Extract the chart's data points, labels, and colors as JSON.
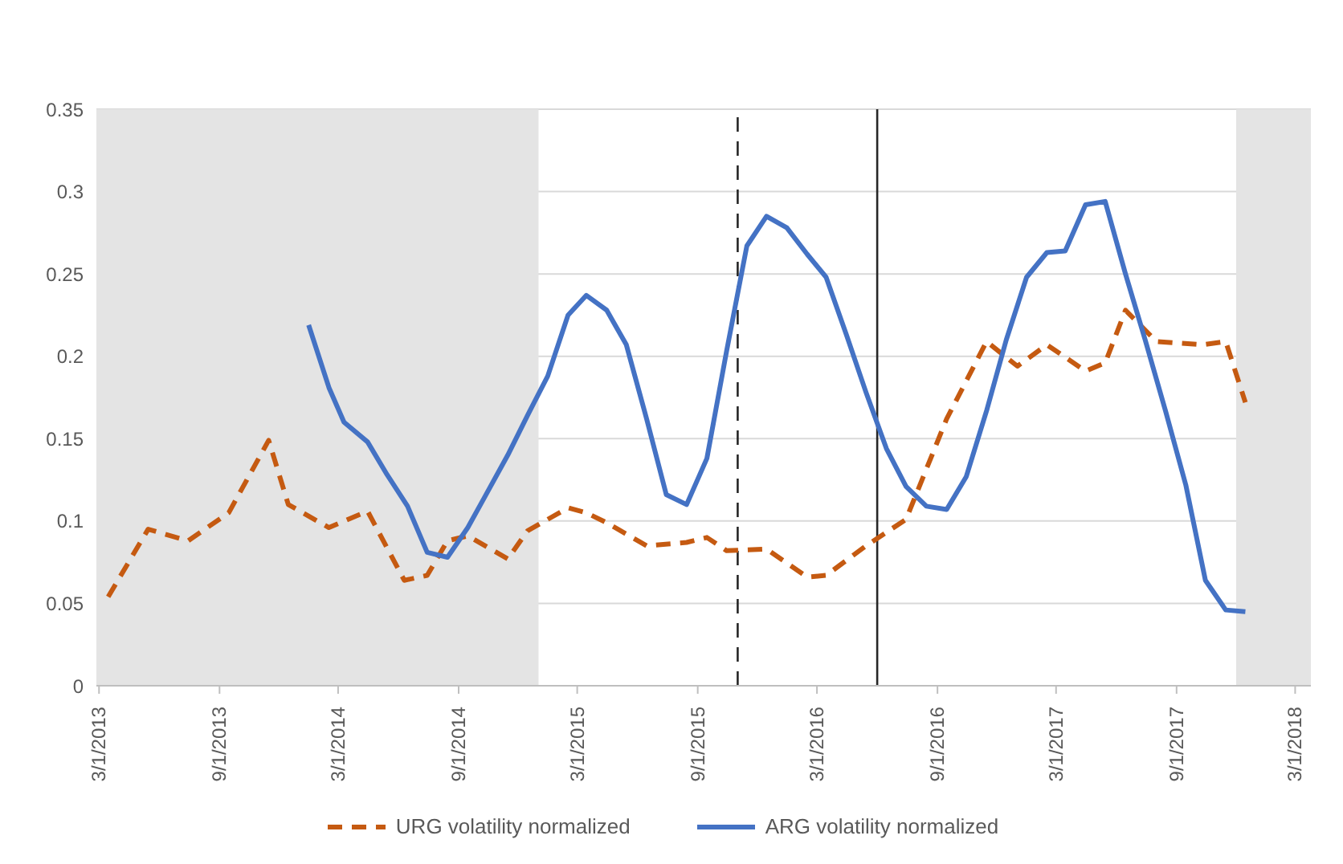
{
  "chart_data": {
    "type": "line",
    "xlim": [
      "2013-02-25",
      "2018-03-25"
    ],
    "xticks": [
      {
        "value": "2013-03-01",
        "label": "3/1/2013"
      },
      {
        "value": "2013-09-01",
        "label": "9/1/2013"
      },
      {
        "value": "2014-03-01",
        "label": "3/1/2014"
      },
      {
        "value": "2014-09-01",
        "label": "9/1/2014"
      },
      {
        "value": "2015-03-01",
        "label": "3/1/2015"
      },
      {
        "value": "2015-09-01",
        "label": "9/1/2015"
      },
      {
        "value": "2016-03-01",
        "label": "3/1/2016"
      },
      {
        "value": "2016-09-01",
        "label": "9/1/2016"
      },
      {
        "value": "2017-03-01",
        "label": "3/1/2017"
      },
      {
        "value": "2017-09-01",
        "label": "9/1/2017"
      },
      {
        "value": "2018-03-01",
        "label": "3/1/2018"
      }
    ],
    "ylim": [
      0,
      0.35
    ],
    "yticks": [
      0,
      0.05,
      0.1,
      0.15,
      0.2,
      0.25,
      0.3,
      0.35
    ],
    "grid": "y",
    "legend": "bottom",
    "marker": "none",
    "bands": [
      {
        "axis": "x",
        "from": "2013-02-25",
        "to": "2015-01-01",
        "color": "#e4e4e4"
      },
      {
        "axis": "x",
        "from": "2017-12-01",
        "to": "2018-03-25",
        "color": "#e4e4e4"
      }
    ],
    "ref_lines": [
      {
        "axis": "x",
        "value": "2015-11-01",
        "color": "#262626",
        "line_style": "dashed"
      },
      {
        "axis": "x",
        "value": "2016-06-01",
        "color": "#262626",
        "line_style": "solid"
      }
    ],
    "series": [
      {
        "name": "URG volatility normalized",
        "color": "#c55a11",
        "line_style": "dashed",
        "x": [
          "2013-03-15",
          "2013-05-15",
          "2013-07-15",
          "2013-09-15",
          "2013-11-15",
          "2013-12-15",
          "2014-02-15",
          "2014-04-15",
          "2014-06-10",
          "2014-07-15",
          "2014-08-15",
          "2014-09-15",
          "2014-11-15",
          "2014-12-15",
          "2015-02-15",
          "2015-03-15",
          "2015-04-15",
          "2015-06-15",
          "2015-08-15",
          "2015-09-15",
          "2015-10-15",
          "2015-12-15",
          "2016-02-15",
          "2016-03-15",
          "2016-05-15",
          "2016-07-15",
          "2016-09-15",
          "2016-11-15",
          "2017-01-01",
          "2017-02-15",
          "2017-04-15",
          "2017-05-15",
          "2017-06-15",
          "2017-08-01",
          "2017-10-10",
          "2017-11-15",
          "2017-12-15"
        ],
        "values": [
          0.054,
          0.095,
          0.088,
          0.105,
          0.149,
          0.11,
          0.096,
          0.106,
          0.064,
          0.067,
          0.088,
          0.091,
          0.077,
          0.094,
          0.108,
          0.105,
          0.099,
          0.085,
          0.087,
          0.09,
          0.082,
          0.083,
          0.066,
          0.067,
          0.085,
          0.101,
          0.162,
          0.209,
          0.194,
          0.207,
          0.191,
          0.196,
          0.228,
          0.209,
          0.207,
          0.209,
          0.172
        ]
      },
      {
        "name": "ARG volatility normalized",
        "color": "#4472c4",
        "line_style": "solid",
        "x": [
          "2014-01-15",
          "2014-02-15",
          "2014-03-10",
          "2014-04-15",
          "2014-05-15",
          "2014-06-15",
          "2014-07-15",
          "2014-08-15",
          "2014-09-15",
          "2014-10-10",
          "2014-11-15",
          "2014-12-15",
          "2015-01-15",
          "2015-02-15",
          "2015-03-15",
          "2015-04-15",
          "2015-05-15",
          "2015-06-15",
          "2015-07-15",
          "2015-08-15",
          "2015-09-15",
          "2015-10-15",
          "2015-11-15",
          "2015-12-15",
          "2016-01-15",
          "2016-02-15",
          "2016-03-15",
          "2016-04-15",
          "2016-05-15",
          "2016-06-15",
          "2016-07-15",
          "2016-08-15",
          "2016-09-15",
          "2016-10-15",
          "2016-11-15",
          "2016-12-15",
          "2017-01-15",
          "2017-02-15",
          "2017-03-15",
          "2017-04-15",
          "2017-05-15",
          "2017-06-15",
          "2017-07-15",
          "2017-08-15",
          "2017-09-15",
          "2017-10-15",
          "2017-11-15",
          "2017-12-15"
        ],
        "values": [
          0.219,
          0.181,
          0.16,
          0.148,
          0.128,
          0.109,
          0.081,
          0.078,
          0.096,
          0.114,
          0.14,
          0.164,
          0.188,
          0.225,
          0.237,
          0.228,
          0.207,
          0.162,
          0.116,
          0.11,
          0.138,
          0.203,
          0.267,
          0.285,
          0.278,
          0.262,
          0.248,
          0.213,
          0.178,
          0.144,
          0.121,
          0.109,
          0.107,
          0.127,
          0.167,
          0.21,
          0.248,
          0.263,
          0.264,
          0.292,
          0.294,
          0.25,
          0.21,
          0.167,
          0.122,
          0.064,
          0.046,
          0.045
        ]
      }
    ]
  }
}
